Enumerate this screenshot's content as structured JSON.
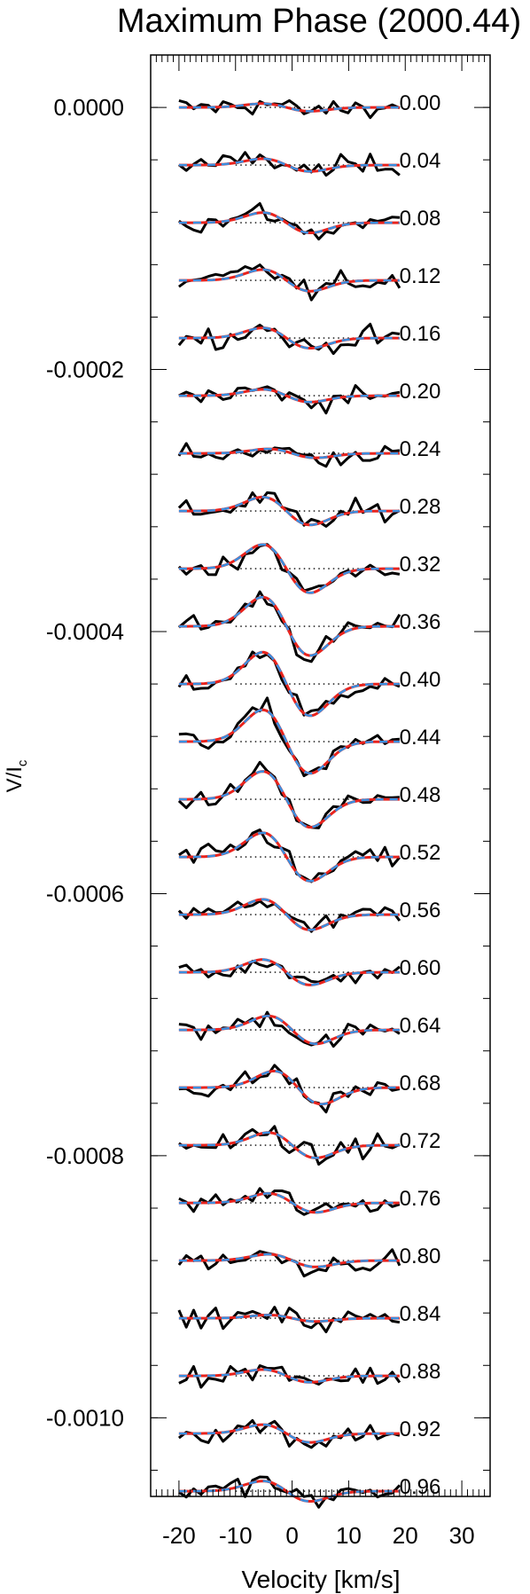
{
  "chart_data": {
    "type": "line",
    "title": "Maximum Phase (2000.44)",
    "xlabel": "Velocity [km/s]",
    "ylabel": "V/I",
    "ylabel_sub": "c",
    "xlim": [
      -25,
      35
    ],
    "ylim": [
      -0.00106,
      4e-05
    ],
    "x_ticks": [
      -20,
      -10,
      0,
      10,
      20,
      30
    ],
    "x_tick_labels": [
      "-20",
      "-10",
      "0",
      "10",
      "20",
      "30"
    ],
    "y_ticks": [
      0.0,
      -0.0002,
      -0.0004,
      -0.0006,
      -0.0008,
      -0.001
    ],
    "y_tick_labels": [
      "0.0000",
      "-0.0002",
      "-0.0004",
      "-0.0006",
      "-0.0008",
      "-0.0010"
    ],
    "offset_step": -4.4e-05,
    "velocity_range": [
      -20,
      19
    ],
    "series_colors": {
      "observed": "#000000",
      "model_a": "#e8231d",
      "model_b": "#3a8fe0",
      "zero_line": "#000000"
    },
    "phases": [
      "0.00",
      "0.04",
      "0.08",
      "0.12",
      "0.16",
      "0.20",
      "0.24",
      "0.28",
      "0.32",
      "0.36",
      "0.40",
      "0.44",
      "0.48",
      "0.52",
      "0.56",
      "0.60",
      "0.64",
      "0.68",
      "0.72",
      "0.76",
      "0.80",
      "0.84",
      "0.88",
      "0.92",
      "0.96"
    ],
    "amplitude": [
      0.3,
      0.5,
      0.8,
      0.85,
      0.8,
      0.5,
      0.35,
      1.1,
      1.9,
      2.3,
      2.5,
      2.5,
      2.2,
      1.9,
      1.2,
      1.0,
      1.1,
      1.3,
      1.0,
      0.75,
      0.5,
      0.25,
      0.5,
      0.7,
      0.8
    ],
    "center": [
      -1,
      -1,
      -1,
      -1,
      -1,
      -1,
      0,
      -1,
      -1,
      -1,
      -1,
      -1,
      -1,
      -1,
      -1,
      -1,
      0,
      1,
      0,
      0,
      0,
      0,
      -1,
      -1,
      -1
    ]
  }
}
